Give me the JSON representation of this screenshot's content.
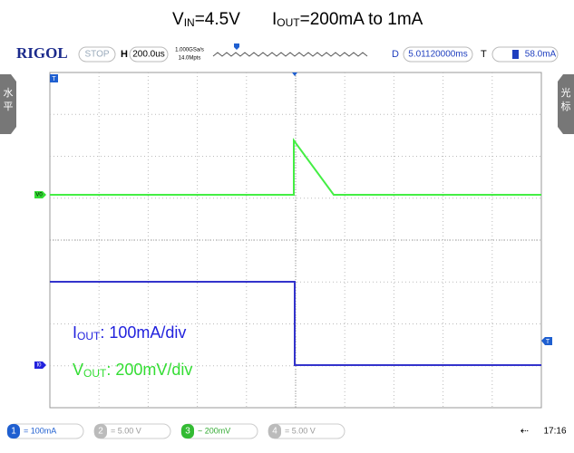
{
  "title": {
    "v_prefix": "V",
    "v_sub": "IN",
    "v_rest": "=4.5V",
    "i_prefix": "I",
    "i_sub": "OUT",
    "i_rest": "=200mA to 1mA"
  },
  "toolbar": {
    "brand": "RIGOL",
    "state": "STOP",
    "h_label": "H",
    "timebase": "200.0us",
    "sample_rate": "1.000GSa/s",
    "memory": "14.0Mpts",
    "d_label": "D",
    "delay": "5.01120000ms",
    "t_label": "T",
    "trigger_level": "58.0mA"
  },
  "side": {
    "left": [
      "水",
      "平"
    ],
    "right": [
      "光",
      "标"
    ]
  },
  "markers": {
    "trigger_top": "T",
    "trigger_right": "T",
    "ch_v": "V0",
    "ch_i": "I0"
  },
  "annotations": {
    "iout": {
      "prefix": "I",
      "sub": "OUT",
      "rest": ": 100mA/div"
    },
    "vout": {
      "prefix": "V",
      "sub": "OUT",
      "rest": ": 200mV/div"
    }
  },
  "channels": [
    {
      "number": "1",
      "setting": "= 100mA"
    },
    {
      "number": "2",
      "setting": "= 5.00 V"
    },
    {
      "number": "3",
      "setting": "~ 200mV"
    },
    {
      "number": "4",
      "setting": "= 5.00 V"
    }
  ],
  "clock": "17:16"
}
